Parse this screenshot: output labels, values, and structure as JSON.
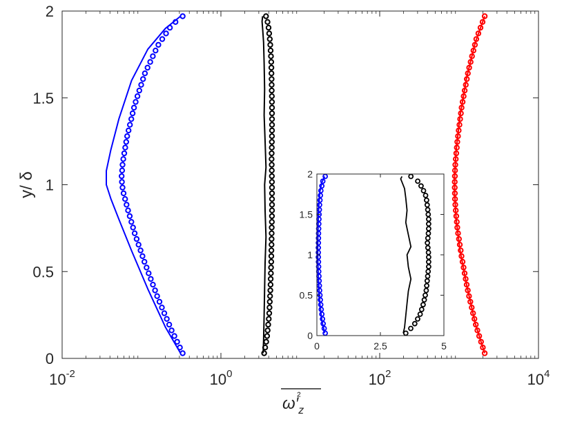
{
  "chart_data": [
    {
      "type": "line",
      "xscale": "log",
      "xlim": [
        0.01,
        10000
      ],
      "ylim": [
        0,
        2
      ],
      "xticks": [
        0.01,
        1,
        100,
        10000
      ],
      "xtick_labels": [
        {
          "base": "10",
          "exp": "-2"
        },
        {
          "base": "10",
          "exp": "0"
        },
        {
          "base": "10",
          "exp": "2"
        },
        {
          "base": "10",
          "exp": "4"
        }
      ],
      "yticks": [
        0,
        0.5,
        1,
        1.5,
        2
      ],
      "ytick_labels": [
        "0",
        "0.5",
        "1",
        "1.5",
        "2"
      ],
      "ylabel": "y/ δ",
      "xlabel": "ω′z²",
      "grid": false,
      "series": [
        {
          "color": "#0000ff",
          "style": "line",
          "x": [
            0.31,
            0.2,
            0.12,
            0.075,
            0.052,
            0.041,
            0.036,
            0.036,
            0.041,
            0.052,
            0.075,
            0.12,
            0.2,
            0.31
          ],
          "y": [
            0.03,
            0.18,
            0.4,
            0.62,
            0.8,
            0.92,
            1.0,
            1.08,
            1.2,
            1.38,
            1.6,
            1.78,
            1.9,
            1.97
          ]
        },
        {
          "color": "#0000ff",
          "style": "circles",
          "x": [
            0.33,
            0.24,
            0.16,
            0.11,
            0.082,
            0.066,
            0.058,
            0.056,
            0.058,
            0.066,
            0.082,
            0.11,
            0.16,
            0.24,
            0.33
          ],
          "y": [
            0.03,
            0.16,
            0.35,
            0.55,
            0.72,
            0.87,
            0.97,
            1.04,
            1.13,
            1.28,
            1.46,
            1.64,
            1.8,
            1.92,
            1.97
          ]
        },
        {
          "color": "#000000",
          "style": "line",
          "x": [
            3.4,
            3.45,
            3.5,
            3.55,
            3.6,
            3.7,
            3.6,
            3.55,
            3.7,
            3.6,
            3.5,
            3.55,
            3.5,
            3.45,
            3.35,
            3.3,
            3.35
          ],
          "y": [
            0.03,
            0.1,
            0.25,
            0.4,
            0.55,
            0.7,
            0.85,
            1.0,
            1.1,
            1.25,
            1.4,
            1.55,
            1.7,
            1.82,
            1.9,
            1.94,
            1.97
          ]
        },
        {
          "color": "#000000",
          "style": "circles",
          "x": [
            3.5,
            3.8,
            4.05,
            4.2,
            4.3,
            4.35,
            4.4,
            4.4,
            4.35,
            4.4,
            4.4,
            4.35,
            4.3,
            4.15,
            3.95,
            3.7
          ],
          "y": [
            0.03,
            0.12,
            0.25,
            0.4,
            0.55,
            0.7,
            0.85,
            1.0,
            1.15,
            1.3,
            1.45,
            1.6,
            1.72,
            1.83,
            1.92,
            1.97
          ]
        },
        {
          "color": "#ff0000",
          "style": "line",
          "x": [
            2100,
            1600,
            1250,
            1030,
            920,
            880,
            880,
            920,
            1030,
            1250,
            1600,
            2100
          ],
          "y": [
            0.03,
            0.2,
            0.42,
            0.62,
            0.8,
            0.95,
            1.05,
            1.2,
            1.4,
            1.62,
            1.82,
            1.97
          ]
        },
        {
          "color": "#ff0000",
          "style": "circles",
          "x": [
            2100,
            1650,
            1300,
            1080,
            950,
            890,
            880,
            890,
            950,
            1080,
            1300,
            1650,
            2100
          ],
          "y": [
            0.03,
            0.18,
            0.38,
            0.58,
            0.75,
            0.9,
            1.0,
            1.1,
            1.25,
            1.45,
            1.65,
            1.84,
            1.97
          ]
        }
      ]
    },
    {
      "type": "line",
      "inset": true,
      "xlim": [
        0,
        5
      ],
      "ylim": [
        0,
        2
      ],
      "xticks": [
        0,
        2.5,
        5
      ],
      "xtick_labels": [
        "0",
        "2.5",
        "5"
      ],
      "yticks": [
        0,
        0.5,
        1,
        1.5,
        2
      ],
      "ytick_labels": [
        "0",
        "0.5",
        "1",
        "1.5",
        "2"
      ],
      "grid": false,
      "series": [
        {
          "color": "#0000ff",
          "style": "line",
          "x": [
            0.31,
            0.2,
            0.12,
            0.075,
            0.052,
            0.041,
            0.036,
            0.036,
            0.041,
            0.052,
            0.075,
            0.12,
            0.2,
            0.31
          ],
          "y": [
            0.03,
            0.18,
            0.4,
            0.62,
            0.8,
            0.92,
            1.0,
            1.08,
            1.2,
            1.38,
            1.6,
            1.78,
            1.9,
            1.97
          ]
        },
        {
          "color": "#0000ff",
          "style": "circles",
          "x": [
            0.33,
            0.24,
            0.16,
            0.11,
            0.082,
            0.066,
            0.058,
            0.056,
            0.058,
            0.066,
            0.082,
            0.11,
            0.16,
            0.24,
            0.33
          ],
          "y": [
            0.03,
            0.16,
            0.35,
            0.55,
            0.72,
            0.87,
            0.97,
            1.04,
            1.13,
            1.28,
            1.46,
            1.64,
            1.8,
            1.92,
            1.97
          ]
        },
        {
          "color": "#000000",
          "style": "line",
          "x": [
            3.4,
            3.45,
            3.5,
            3.55,
            3.6,
            3.7,
            3.6,
            3.55,
            3.7,
            3.6,
            3.5,
            3.55,
            3.5,
            3.45,
            3.35,
            3.3,
            3.35
          ],
          "y": [
            0.03,
            0.1,
            0.25,
            0.4,
            0.55,
            0.7,
            0.85,
            1.0,
            1.1,
            1.25,
            1.4,
            1.55,
            1.7,
            1.82,
            1.9,
            1.94,
            1.97
          ]
        },
        {
          "color": "#000000",
          "style": "circles",
          "x": [
            3.5,
            3.8,
            4.05,
            4.2,
            4.3,
            4.35,
            4.4,
            4.4,
            4.35,
            4.4,
            4.4,
            4.35,
            4.3,
            4.15,
            3.95,
            3.7
          ],
          "y": [
            0.03,
            0.12,
            0.25,
            0.4,
            0.55,
            0.7,
            0.85,
            1.0,
            1.15,
            1.3,
            1.45,
            1.6,
            1.72,
            1.83,
            1.92,
            1.97
          ]
        }
      ]
    }
  ]
}
